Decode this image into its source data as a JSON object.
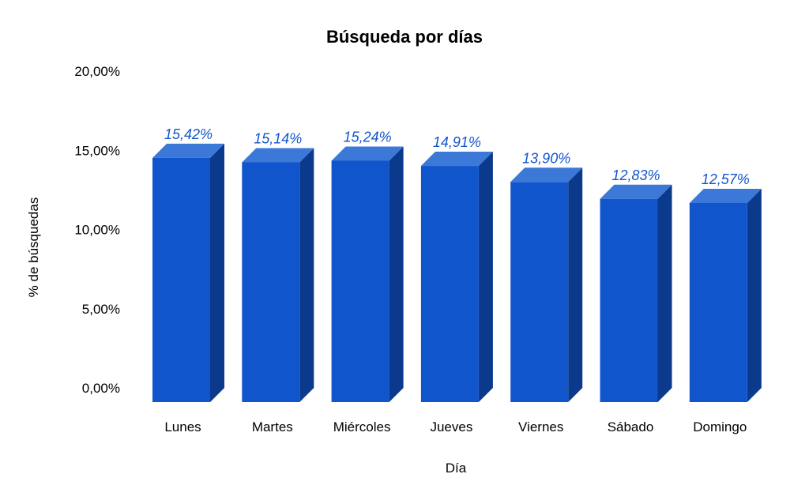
{
  "chart_data": {
    "type": "bar",
    "title": "Búsqueda por días",
    "xlabel": "Día",
    "ylabel": "% de búsquedas",
    "categories": [
      "Lunes",
      "Martes",
      "Miércoles",
      "Jueves",
      "Viernes",
      "Sábado",
      "Domingo"
    ],
    "values": [
      15.42,
      15.14,
      15.24,
      14.91,
      13.9,
      12.83,
      12.57
    ],
    "data_labels": [
      "15,42%",
      "15,14%",
      "15,24%",
      "14,91%",
      "13,90%",
      "12,83%",
      "12,57%"
    ],
    "ylim": [
      0,
      20
    ],
    "y_ticks": [
      0,
      5,
      10,
      15,
      20
    ],
    "y_tick_labels": [
      "0,00%",
      "5,00%",
      "10,00%",
      "15,00%",
      "20,00%"
    ],
    "grid": false,
    "legend": "none",
    "style": "3d",
    "colors": {
      "front": "#1155cc",
      "top": "#3c78d8",
      "side": "#0b3a8c",
      "label": "#1155cc"
    }
  }
}
